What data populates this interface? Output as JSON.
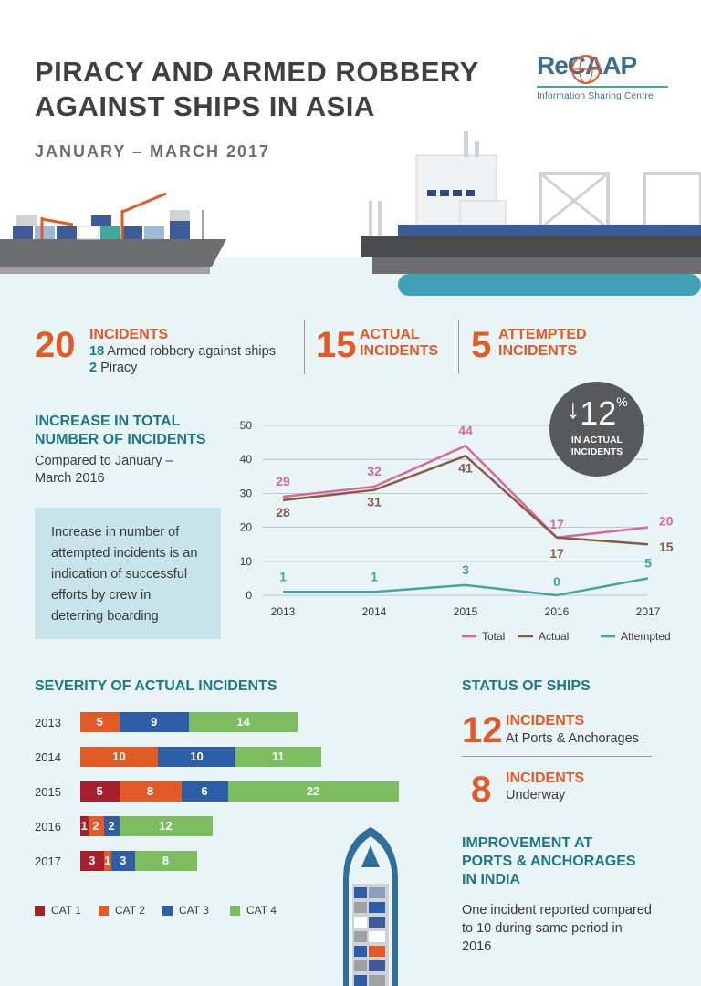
{
  "header": {
    "title_line1": "PIRACY AND ARMED ROBBERY",
    "title_line2": "AGAINST SHIPS IN ASIA",
    "period": "JANUARY – MARCH 2017",
    "logo_text": "ReCAAP",
    "logo_sub": "Information Sharing Centre"
  },
  "summary": {
    "total_num": "20",
    "total_label": "INCIDENTS",
    "armed_num": "18",
    "armed_label": "Armed robbery against ships",
    "piracy_num": "2",
    "piracy_label": "Piracy",
    "actual_num": "15",
    "actual_label_1": "ACTUAL",
    "actual_label_2": "INCIDENTS",
    "attempted_num": "5",
    "attempted_label_1": "ATTEMPTED",
    "attempted_label_2": "INCIDENTS"
  },
  "increase": {
    "heading_1": "INCREASE IN TOTAL",
    "heading_2": "NUMBER OF INCIDENTS",
    "sub_1": "Compared to January –",
    "sub_2": "March 2016",
    "note": "Increase in number of attempted incidents is an indication of successful efforts by crew in deterring boarding"
  },
  "badge": {
    "arrow": "↓",
    "value": "12",
    "pct": "%",
    "line1": "IN ACTUAL",
    "line2": "INCIDENTS"
  },
  "colors": {
    "orange": "#e25a26",
    "teal": "#1e7784",
    "total": "#d9669e",
    "actual": "#8a5a45",
    "attempted": "#3fa89b",
    "cat1": "#a51f2d",
    "cat2": "#e25a26",
    "cat3": "#2e5ea8",
    "cat4": "#7cbd5f"
  },
  "chart_data": [
    {
      "type": "line",
      "x": [
        "2013",
        "2014",
        "2015",
        "2016",
        "2017"
      ],
      "ylim": [
        0,
        50
      ],
      "yticks": [
        "0",
        "10",
        "20",
        "30",
        "40",
        "50"
      ],
      "grid": true,
      "legend": "bottom-right",
      "series": [
        {
          "name": "Total",
          "values": [
            29,
            32,
            44,
            17,
            20
          ],
          "labels": [
            "29",
            "32",
            "44",
            "17",
            "20"
          ]
        },
        {
          "name": "Actual",
          "values": [
            28,
            31,
            41,
            17,
            15
          ],
          "labels": [
            "28",
            "31",
            "41",
            "17",
            "15"
          ]
        },
        {
          "name": "Attempted",
          "values": [
            1,
            1,
            3,
            0,
            5
          ],
          "labels": [
            "1",
            "1",
            "3",
            "0",
            "5"
          ]
        }
      ]
    },
    {
      "type": "bar",
      "title": "SEVERITY OF ACTUAL INCIDENTS",
      "orientation": "horizontal-stacked",
      "categories": [
        "2013",
        "2014",
        "2015",
        "2016",
        "2017"
      ],
      "series": [
        {
          "name": "CAT 1",
          "values": [
            0,
            0,
            5,
            1,
            3
          ]
        },
        {
          "name": "CAT 2",
          "values": [
            5,
            10,
            8,
            2,
            1
          ]
        },
        {
          "name": "CAT 3",
          "values": [
            9,
            10,
            6,
            2,
            3
          ]
        },
        {
          "name": "CAT 4",
          "values": [
            14,
            11,
            22,
            12,
            8
          ]
        }
      ],
      "legend": "bottom"
    }
  ],
  "status": {
    "heading": "STATUS OF SHIPS",
    "ports_num": "12",
    "ports_label": "INCIDENTS",
    "ports_sub": "At Ports & Anchorages",
    "underway_num": "8",
    "underway_label": "INCIDENTS",
    "underway_sub": "Underway"
  },
  "india": {
    "heading_1": "IMPROVEMENT AT",
    "heading_2": "PORTS & ANCHORAGES",
    "heading_3": "IN INDIA",
    "body": "One incident reported compared to 10 during same period in 2016"
  }
}
